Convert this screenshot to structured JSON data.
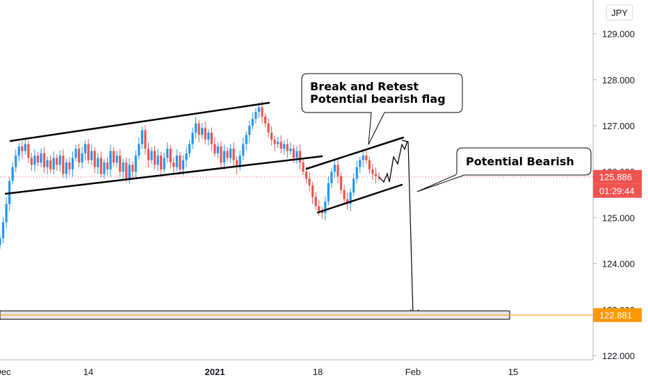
{
  "chart_data": {
    "type": "candlestick",
    "currency": "JPY",
    "y_ticks": [
      "129.000",
      "128.000",
      "127.000",
      "126.000",
      "125.000",
      "124.000",
      "123.000",
      "122.000"
    ],
    "x_ticks": [
      "Dec",
      "14",
      "2021",
      "18",
      "Feb",
      "15"
    ],
    "ylim": [
      121.9,
      129.9
    ],
    "last_price": "125.886",
    "countdown": "01:29:44",
    "target_price": "122.881",
    "annotations": {
      "flag_callout_line1": "Break and Retest",
      "flag_callout_line2": "Potential bearish flag",
      "bearish_callout": "Potential Bearish"
    },
    "series": [
      {
        "values": [
          124.55,
          124.9,
          125.3,
          125.8,
          126.1,
          126.35,
          126.55,
          126.45,
          126.6,
          126.3,
          126.15,
          126.35,
          126.2,
          126.4,
          126.1,
          126.25,
          126.05,
          126.3,
          126.15,
          126.35,
          125.95,
          126.2,
          126.05,
          126.3,
          126.5,
          126.2,
          126.4,
          126.6,
          126.25,
          126.45,
          126.1,
          126.3,
          125.95,
          126.2,
          126.05,
          126.45,
          126.2,
          126.35,
          126.0,
          126.2,
          125.85,
          126.15,
          126.0,
          126.35,
          126.6,
          126.9,
          126.5,
          126.25,
          126.45,
          126.15,
          126.35,
          126.05,
          126.3,
          126.5,
          126.2,
          126.1,
          126.35,
          126.05,
          126.25,
          126.4,
          126.6,
          126.85,
          127.05,
          126.8,
          126.95,
          126.7,
          126.85,
          126.6,
          126.4,
          126.55,
          126.2,
          126.45,
          126.3,
          126.5,
          126.25,
          126.1,
          126.35,
          126.6,
          126.8,
          127.0,
          127.15,
          127.3,
          127.4,
          127.2,
          127.05,
          126.85,
          126.7,
          126.6,
          126.65,
          126.5,
          126.6,
          126.45,
          126.5,
          126.3,
          126.45,
          126.2,
          126.0,
          125.85,
          125.7,
          125.45,
          125.25,
          125.15,
          125.1,
          125.35,
          125.75,
          126.0,
          126.15,
          125.9,
          125.6,
          125.4,
          125.3,
          125.55,
          125.85,
          126.1,
          126.25,
          126.35,
          126.25,
          126.05,
          125.95,
          125.9,
          125.886
        ]
      }
    ]
  }
}
